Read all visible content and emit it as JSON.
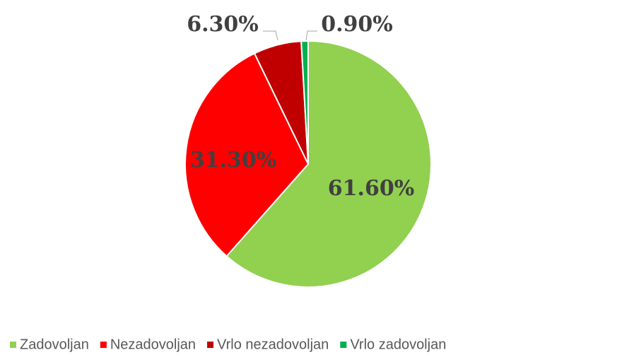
{
  "chart_data": {
    "type": "pie",
    "categories": [
      "Zadovoljan",
      "Nezadovoljan",
      "Vrlo nezadovoljan",
      "Vrlo zadovoljan"
    ],
    "values": [
      61.6,
      31.3,
      6.3,
      0.9
    ],
    "value_labels": [
      "61.60%",
      "31.30%",
      "6.30%",
      "0.90%"
    ],
    "colors": [
      "#92d050",
      "#ff0000",
      "#c00000",
      "#00b050"
    ],
    "legend": "bottom"
  }
}
